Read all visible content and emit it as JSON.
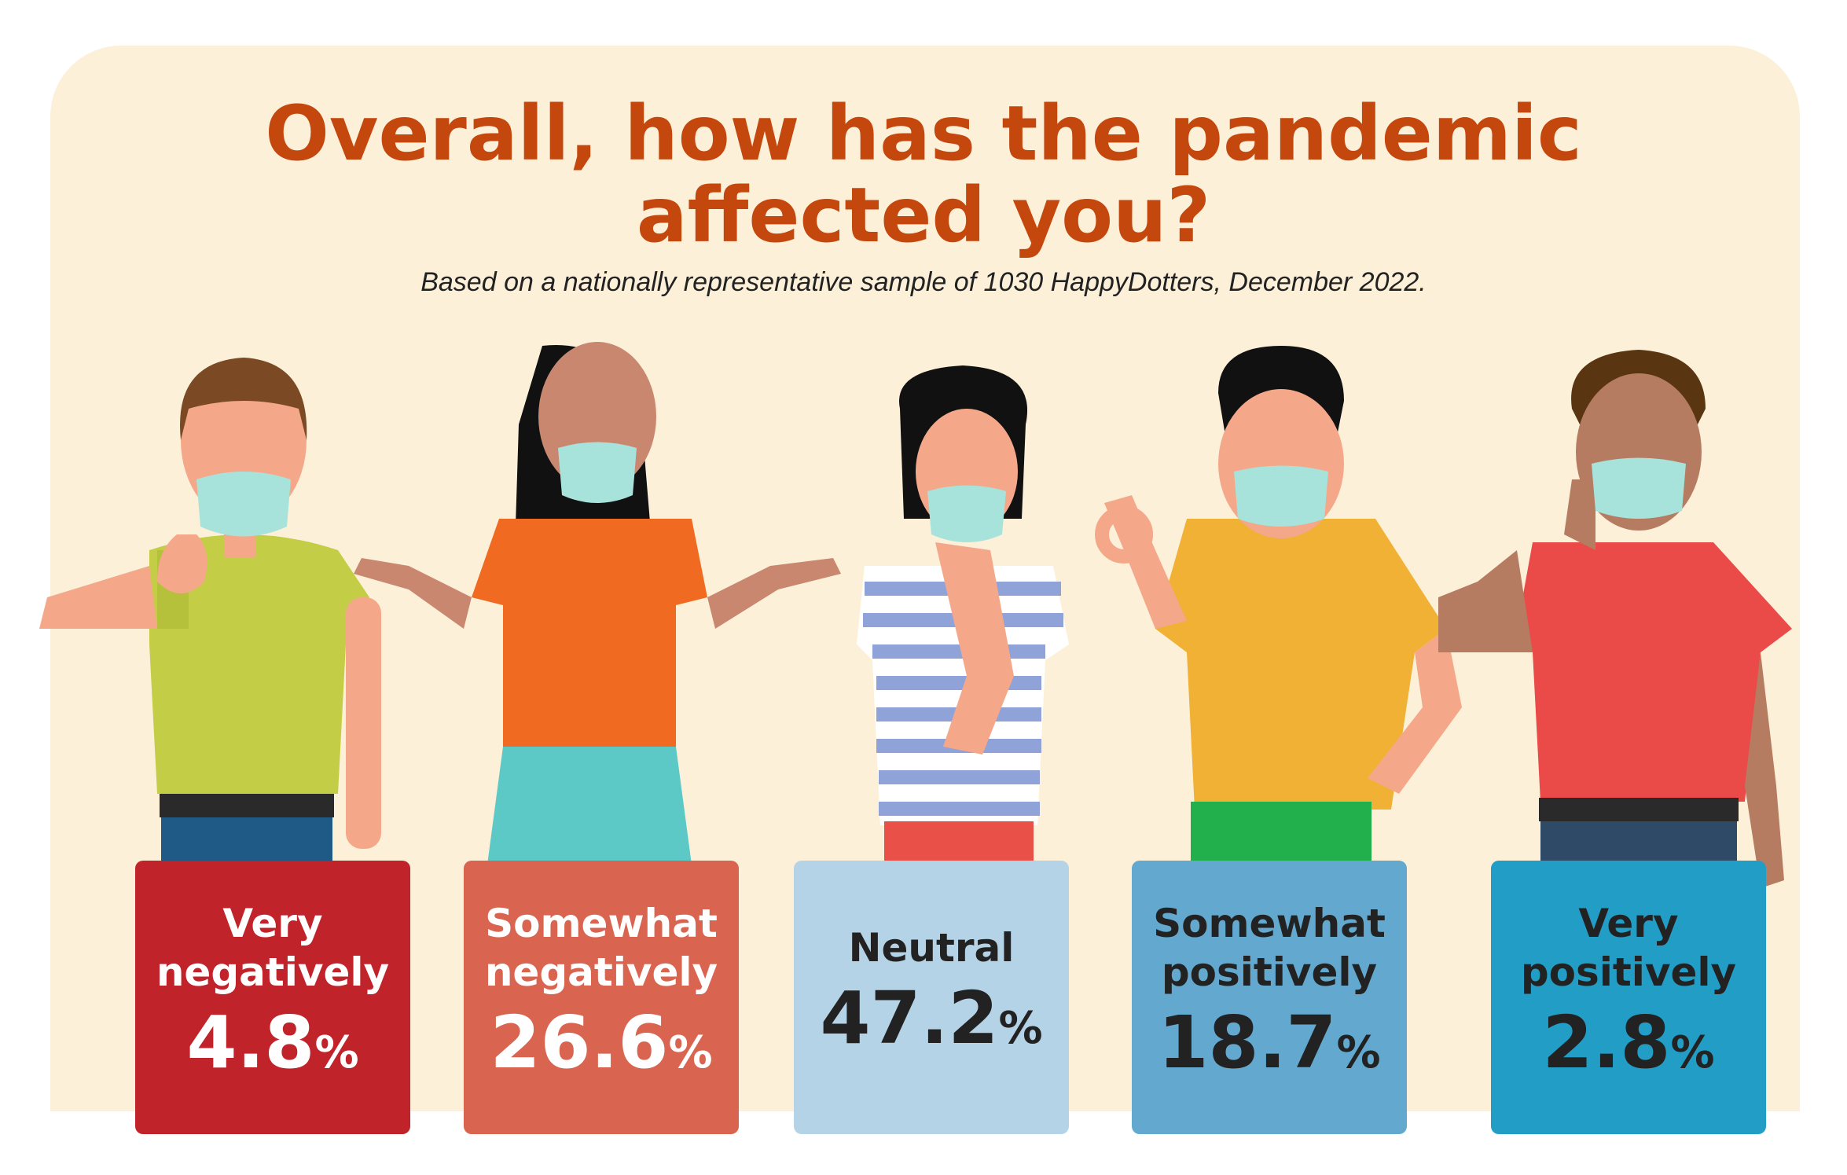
{
  "title_line1": "Overall, how has the pandemic",
  "title_line2": "affected you?",
  "subtitle": "Based on a nationally representative sample of 1030 HappyDotters, December 2022.",
  "colors": {
    "title": "#c4470e",
    "panel": "#fdf0d9"
  },
  "chart_data": {
    "type": "table",
    "title": "Overall, how has the pandemic affected you?",
    "subtitle": "Based on a nationally representative sample of 1030 HappyDotters, December 2022.",
    "unit": "%",
    "categories": [
      "Very negatively",
      "Somewhat negatively",
      "Neutral",
      "Somewhat positively",
      "Very positively"
    ],
    "values": [
      4.8,
      26.6,
      47.2,
      18.7,
      2.8
    ],
    "card_colors": [
      "#c0232a",
      "#d9644f",
      "#b5d3e6",
      "#63a9cf",
      "#229ec6"
    ],
    "text_colors": [
      "#ffffff",
      "#ffffff",
      "#222222",
      "#222222",
      "#222222"
    ],
    "cards": [
      {
        "label": "Very\nnegatively",
        "value": "4.8",
        "unit": "%"
      },
      {
        "label": "Somewhat\nnegatively",
        "value": "26.6",
        "unit": "%"
      },
      {
        "label": "Neutral",
        "value": "47.2",
        "unit": "%"
      },
      {
        "label": "Somewhat\npositively",
        "value": "18.7",
        "unit": "%"
      },
      {
        "label": "Very\npositively",
        "value": "2.8",
        "unit": "%"
      }
    ]
  }
}
